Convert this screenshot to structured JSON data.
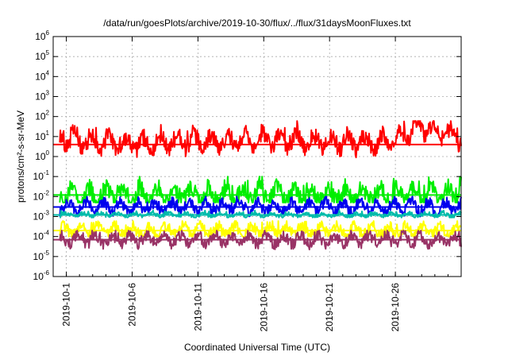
{
  "chart_data": {
    "type": "line",
    "title": "/data/run/goesPlots/archive/2019-10-30/flux/../flux/31daysMoonFluxes.txt",
    "xlabel": "Coordinated Universal Time (UTC)",
    "ylabel": "protons/cm²-s-sr-MeV",
    "y_scale": "log",
    "ylim": [
      1e-06,
      1000000.0
    ],
    "xlim": [
      "2019-09-30",
      "2019-10-31"
    ],
    "grid": true,
    "x_ticks": [
      "2019-10-1",
      "2019-10-6",
      "2019-10-11",
      "2019-10-16",
      "2019-10-21",
      "2019-10-26"
    ],
    "y_ticks": [
      {
        "base": "10",
        "exp": "-6"
      },
      {
        "base": "10",
        "exp": "-5"
      },
      {
        "base": "10",
        "exp": "-4"
      },
      {
        "base": "10",
        "exp": "-3"
      },
      {
        "base": "10",
        "exp": "-2"
      },
      {
        "base": "10",
        "exp": "-1"
      },
      {
        "base": "10",
        "exp": "0"
      },
      {
        "base": "10",
        "exp": "1"
      },
      {
        "base": "10",
        "exp": "2"
      },
      {
        "base": "10",
        "exp": "3"
      },
      {
        "base": "10",
        "exp": "4"
      },
      {
        "base": "10",
        "exp": "5"
      },
      {
        "base": "10",
        "exp": "6"
      }
    ],
    "series": [
      {
        "color": "#ff0000",
        "baseline": 4,
        "min": 0.3,
        "max": 60,
        "variability": "high",
        "x": [
          "2019-10-01",
          "2019-10-04",
          "2019-10-07",
          "2019-10-10",
          "2019-10-13",
          "2019-10-16",
          "2019-10-19",
          "2019-10-22",
          "2019-10-25",
          "2019-10-28",
          "2019-10-31"
        ],
        "y": [
          8,
          5,
          4,
          6,
          5,
          8,
          5,
          6,
          5,
          30,
          10
        ]
      },
      {
        "color": "#00ee00",
        "baseline": 0.012,
        "min": 0.005,
        "max": 0.1,
        "variability": "high",
        "x": [
          "2019-10-01",
          "2019-10-11",
          "2019-10-21",
          "2019-10-31"
        ],
        "y": [
          0.012,
          0.013,
          0.012,
          0.012
        ]
      },
      {
        "color": "#0000ee",
        "baseline": 0.003,
        "min": 0.001,
        "max": 0.01,
        "variability": "medium",
        "x": [
          "2019-10-01",
          "2019-10-11",
          "2019-10-21",
          "2019-10-31"
        ],
        "y": [
          0.003,
          0.003,
          0.003,
          0.003
        ]
      },
      {
        "color": "#00bbaa",
        "baseline": 0.0012,
        "min": 0.0009,
        "max": 0.002,
        "variability": "low",
        "x": [
          "2019-10-01",
          "2019-10-11",
          "2019-10-21",
          "2019-10-31"
        ],
        "y": [
          0.0012,
          0.0012,
          0.0012,
          0.0012
        ]
      },
      {
        "color": "#ffff00",
        "baseline": 0.0002,
        "min": 0.0001,
        "max": 0.0006,
        "variability": "medium",
        "x": [
          "2019-10-01",
          "2019-10-11",
          "2019-10-21",
          "2019-10-31"
        ],
        "y": [
          0.0002,
          0.0002,
          0.0002,
          0.0002
        ]
      },
      {
        "color": "#993366",
        "baseline": 7e-05,
        "min": 2e-05,
        "max": 0.0002,
        "variability": "medium",
        "x": [
          "2019-10-01",
          "2019-10-11",
          "2019-10-21",
          "2019-10-31"
        ],
        "y": [
          7e-05,
          7e-05,
          7e-05,
          7e-05
        ]
      }
    ]
  }
}
